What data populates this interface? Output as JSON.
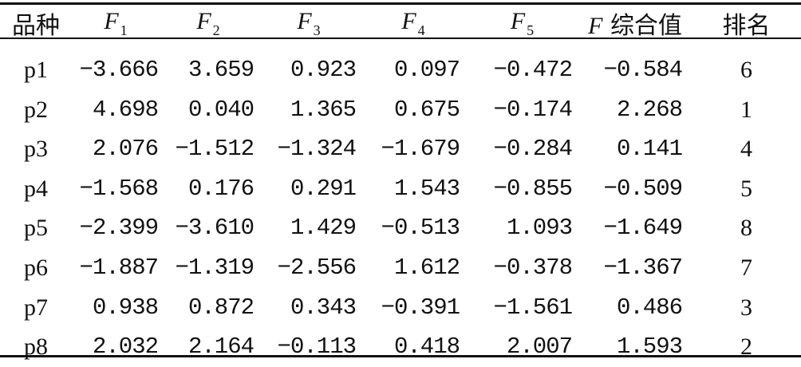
{
  "table": {
    "headers": {
      "variety": "品种",
      "f_letter": "F",
      "f1_sub": "1",
      "f2_sub": "2",
      "f3_sub": "3",
      "f4_sub": "4",
      "f5_sub": "5",
      "composite_prefix": "F",
      "composite_suffix": "综合值",
      "rank": "排名"
    },
    "rows": [
      {
        "name": "p1",
        "f1": "−3.666",
        "f2": "3.659",
        "f3": "0.923",
        "f4": "0.097",
        "f5": "−0.472",
        "f": "−0.584",
        "rank": "6"
      },
      {
        "name": "p2",
        "f1": "4.698",
        "f2": "0.040",
        "f3": "1.365",
        "f4": "0.675",
        "f5": "−0.174",
        "f": "2.268",
        "rank": "1"
      },
      {
        "name": "p3",
        "f1": "2.076",
        "f2": "−1.512",
        "f3": "−1.324",
        "f4": "−1.679",
        "f5": "−0.284",
        "f": "0.141",
        "rank": "4"
      },
      {
        "name": "p4",
        "f1": "−1.568",
        "f2": "0.176",
        "f3": "0.291",
        "f4": "1.543",
        "f5": "−0.855",
        "f": "−0.509",
        "rank": "5"
      },
      {
        "name": "p5",
        "f1": "−2.399",
        "f2": "−3.610",
        "f3": "1.429",
        "f4": "−0.513",
        "f5": "1.093",
        "f": "−1.649",
        "rank": "8"
      },
      {
        "name": "p6",
        "f1": "−1.887",
        "f2": "−1.319",
        "f3": "−2.556",
        "f4": "1.612",
        "f5": "−0.378",
        "f": "−1.367",
        "rank": "7"
      },
      {
        "name": "p7",
        "f1": "0.938",
        "f2": "0.872",
        "f3": "0.343",
        "f4": "−0.391",
        "f5": "−1.561",
        "f": "0.486",
        "rank": "3"
      },
      {
        "name": "p8",
        "f1": "2.032",
        "f2": "2.164",
        "f3": "−0.113",
        "f4": "0.418",
        "f5": "2.007",
        "f": "1.593",
        "rank": "2"
      }
    ]
  }
}
